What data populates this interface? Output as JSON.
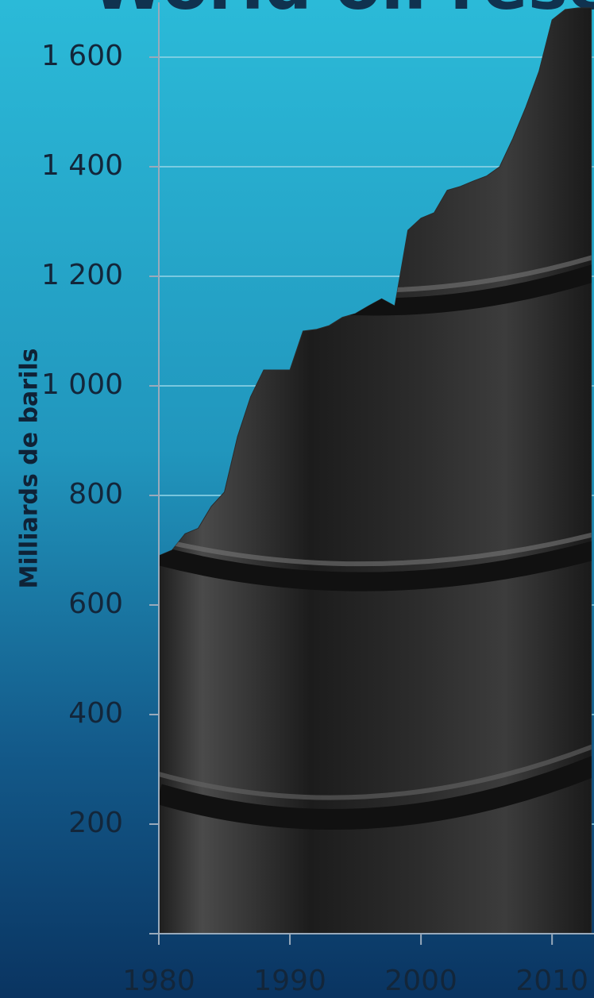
{
  "chart_data": {
    "type": "area",
    "title": "World oil reserves",
    "y_label": "Milliards de barils",
    "x": [
      1980,
      1981,
      1982,
      1983,
      1984,
      1985,
      1986,
      1987,
      1988,
      1989,
      1990,
      1991,
      1992,
      1993,
      1994,
      1995,
      1996,
      1997,
      1998,
      1999,
      2000,
      2001,
      2002,
      2003,
      2004,
      2005,
      2006,
      2007,
      2008,
      2009,
      2010,
      2011,
      2012,
      2013
    ],
    "values": [
      690,
      700,
      730,
      740,
      780,
      806,
      907,
      980,
      1029,
      1029,
      1029,
      1100,
      1103,
      1110,
      1125,
      1132,
      1146,
      1159,
      1146,
      1284,
      1306,
      1316,
      1357,
      1364,
      1374,
      1383,
      1400,
      1451,
      1509,
      1574,
      1668,
      1687,
      1690,
      1690
    ],
    "color": "#2b2b2b",
    "xlim": [
      1980,
      2013.2
    ],
    "xticks": [
      1980,
      1990,
      2000,
      2010
    ],
    "ylim": [
      0,
      1700
    ],
    "yticks": [
      200,
      400,
      600,
      800,
      {
        "value": 1000,
        "label": "1 000"
      },
      {
        "value": 1200,
        "label": "1 200"
      },
      {
        "value": 1400,
        "label": "1 400"
      },
      {
        "value": 1600,
        "label": "1 600"
      }
    ],
    "grid": true
  }
}
